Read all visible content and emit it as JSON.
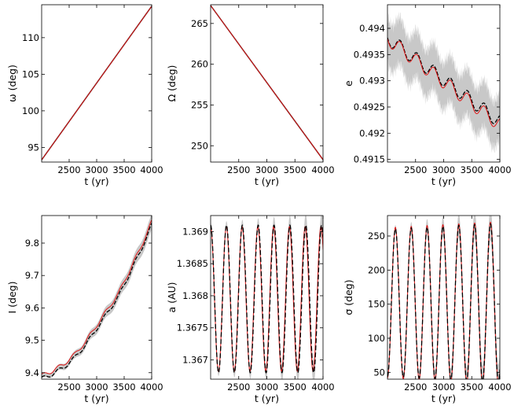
{
  "colors": {
    "envelope": "#c8c8c8",
    "mean": "#000000",
    "model": "#e01515"
  },
  "chart_data": [
    {
      "type": "line",
      "xlabel": "t (yr)",
      "ylabel": "ω (deg)",
      "xlim": [
        2000,
        4000
      ],
      "ylim": [
        93,
        114.5
      ],
      "xticks": [
        2500,
        3000,
        3500,
        4000
      ],
      "yticks": [
        95,
        100,
        105,
        110
      ],
      "x": [
        2000,
        4000
      ],
      "y": [
        93.3,
        114.3
      ]
    },
    {
      "type": "line",
      "xlabel": "t (yr)",
      "ylabel": "Ω (deg)",
      "xlim": [
        2000,
        4000
      ],
      "ylim": [
        248,
        267.3
      ],
      "xticks": [
        2500,
        3000,
        3500,
        4000
      ],
      "yticks": [
        250,
        255,
        260,
        265
      ],
      "x": [
        2000,
        4000
      ],
      "y": [
        267.2,
        248.3
      ]
    },
    {
      "type": "line",
      "xlabel": "t (yr)",
      "ylabel": "e",
      "xlim": [
        2000,
        4000
      ],
      "ylim": [
        0.49145,
        0.49445
      ],
      "xticks": [
        2500,
        3000,
        3500,
        4000
      ],
      "yticks": [
        0.4915,
        0.492,
        0.4925,
        0.493,
        0.4935,
        0.494
      ],
      "ytick_labels": [
        "0.4915",
        "0.492",
        "0.4925",
        "0.493",
        "0.4935",
        "0.494"
      ],
      "x": [
        2000,
        4000
      ],
      "y": [
        0.4938,
        0.4922
      ],
      "oscillation_amplitude": 0.00013,
      "oscillation_period": 300,
      "band_halfwidth": 0.00045
    },
    {
      "type": "line",
      "xlabel": "t (yr)",
      "ylabel": "I (deg)",
      "xlim": [
        2000,
        4000
      ],
      "ylim": [
        9.38,
        9.885
      ],
      "xticks": [
        2500,
        3000,
        3500,
        4000
      ],
      "yticks": [
        9.4,
        9.5,
        9.6,
        9.7,
        9.8
      ],
      "ytick_labels": [
        "9.4",
        "9.5",
        "9.6",
        "9.7",
        "9.8"
      ],
      "x": [
        2000,
        2200,
        2400,
        2600,
        2800,
        3000,
        3200,
        3400,
        3600,
        3800,
        4000
      ],
      "y": [
        9.385,
        9.4,
        9.42,
        9.45,
        9.49,
        9.54,
        9.59,
        9.64,
        9.71,
        9.78,
        9.86
      ]
    },
    {
      "type": "line",
      "xlabel": "t (yr)",
      "ylabel": "a (AU)",
      "xlim": [
        2000,
        4000
      ],
      "ylim": [
        1.3667,
        1.36925
      ],
      "xticks": [
        2500,
        3000,
        3500,
        4000
      ],
      "yticks": [
        1.367,
        1.3675,
        1.368,
        1.3685,
        1.369
      ],
      "ytick_labels": [
        "1.367",
        "1.3675",
        "1.368",
        "1.3685",
        "1.369"
      ],
      "x": [
        2000,
        4000
      ],
      "center": 1.36795,
      "amplitude": 0.00115,
      "period": 282
    },
    {
      "type": "line",
      "xlabel": "t (yr)",
      "ylabel": "σ (deg)",
      "xlim": [
        2000,
        4000
      ],
      "ylim": [
        40,
        280
      ],
      "xticks": [
        2500,
        3000,
        3500,
        4000
      ],
      "yticks": [
        50,
        100,
        150,
        200,
        250
      ],
      "x": [
        2000,
        4000
      ],
      "center": 152,
      "amplitude": 108,
      "period": 282
    }
  ]
}
